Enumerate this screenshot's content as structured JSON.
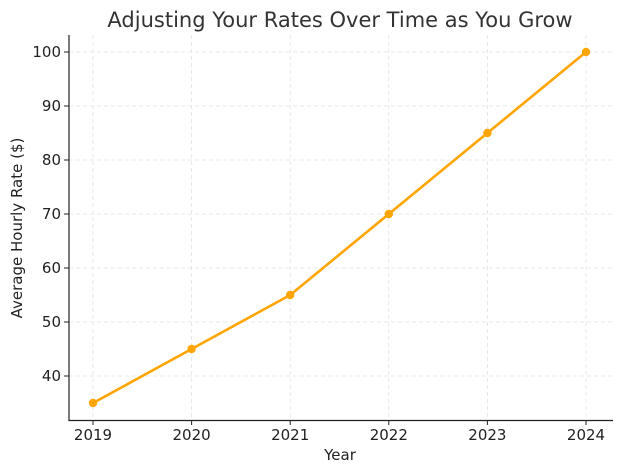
{
  "chart_data": {
    "type": "line",
    "title": "Adjusting Your Rates Over Time as You Grow",
    "xlabel": "Year",
    "ylabel": "Average Hourly Rate ($)",
    "categories": [
      "2019",
      "2020",
      "2021",
      "2022",
      "2023",
      "2024"
    ],
    "series": [
      {
        "name": "Average Hourly Rate",
        "values": [
          35,
          45,
          55,
          70,
          85,
          100
        ],
        "color": "#FFA500"
      }
    ],
    "yticks": [
      40,
      50,
      60,
      70,
      80,
      90,
      100
    ],
    "ylim": [
      31.75,
      103.25
    ],
    "grid": true,
    "legend": null
  }
}
